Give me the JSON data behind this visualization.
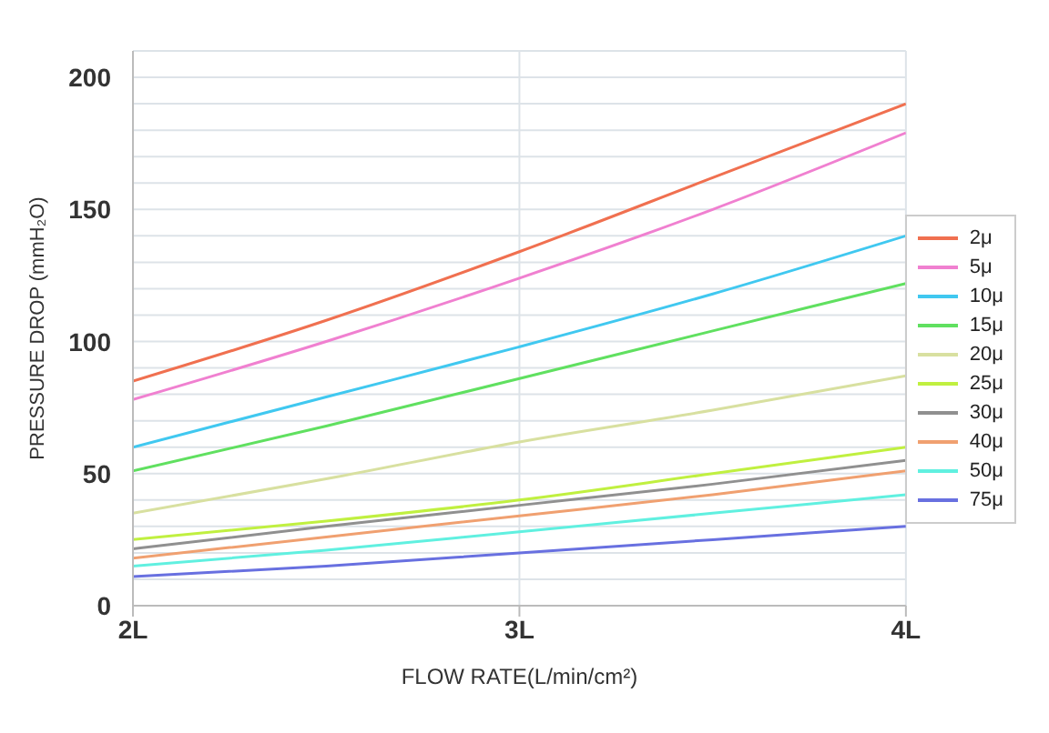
{
  "chart_data": {
    "type": "line",
    "xlabel": "FLOW RATE(L/min/cm²)",
    "ylabel": "PRESSURE DROP  (mmH₂O)",
    "x": [
      2,
      2.5,
      3,
      3.5,
      4
    ],
    "xlim": [
      2,
      4
    ],
    "xticks": [
      {
        "value": 2,
        "label": "2L"
      },
      {
        "value": 3,
        "label": "3L"
      },
      {
        "value": 4,
        "label": "4L"
      }
    ],
    "ylim": [
      0,
      210
    ],
    "yticks": [
      0,
      {
        "value": 10,
        "label": null
      },
      {
        "value": 20,
        "label": null
      },
      {
        "value": 30,
        "label": null
      },
      {
        "value": 40,
        "label": null
      },
      50,
      {
        "value": 60,
        "label": null
      },
      {
        "value": 70,
        "label": null
      },
      {
        "value": 80,
        "label": null
      },
      {
        "value": 90,
        "label": null
      },
      100,
      {
        "value": 110,
        "label": null
      },
      {
        "value": 120,
        "label": null
      },
      {
        "value": 130,
        "label": null
      },
      {
        "value": 140,
        "label": null
      },
      150,
      {
        "value": 160,
        "label": null
      },
      {
        "value": 170,
        "label": null
      },
      {
        "value": 180,
        "label": null
      },
      {
        "value": 190,
        "label": null
      },
      200
    ],
    "grid": true,
    "legend": "right",
    "marker": "none",
    "line_style": "solid",
    "series": [
      {
        "name": "2μ",
        "color": "#f07050",
        "values": [
          85,
          108,
          134,
          162,
          190
        ]
      },
      {
        "name": "5μ",
        "color": "#f080d0",
        "values": [
          78,
          100,
          124,
          150,
          179
        ]
      },
      {
        "name": "10μ",
        "color": "#40c8f0",
        "values": [
          60,
          79,
          98,
          118,
          140
        ]
      },
      {
        "name": "15μ",
        "color": "#60e060",
        "values": [
          51,
          68,
          86,
          104,
          122
        ]
      },
      {
        "name": "20μ",
        "color": "#d8e0a0",
        "values": [
          35,
          48,
          62,
          74,
          87
        ]
      },
      {
        "name": "25μ",
        "color": "#c0f040",
        "values": [
          25,
          32,
          40,
          50,
          60
        ]
      },
      {
        "name": "30μ",
        "color": "#909090",
        "values": [
          21.5,
          30,
          38,
          46,
          55
        ]
      },
      {
        "name": "40μ",
        "color": "#f0a070",
        "values": [
          18,
          26,
          34,
          42,
          51
        ]
      },
      {
        "name": "50μ",
        "color": "#60f0e0",
        "values": [
          15,
          21,
          28,
          35,
          42
        ]
      },
      {
        "name": "75μ",
        "color": "#6870e0",
        "values": [
          11,
          15,
          20,
          25,
          30
        ]
      }
    ]
  }
}
